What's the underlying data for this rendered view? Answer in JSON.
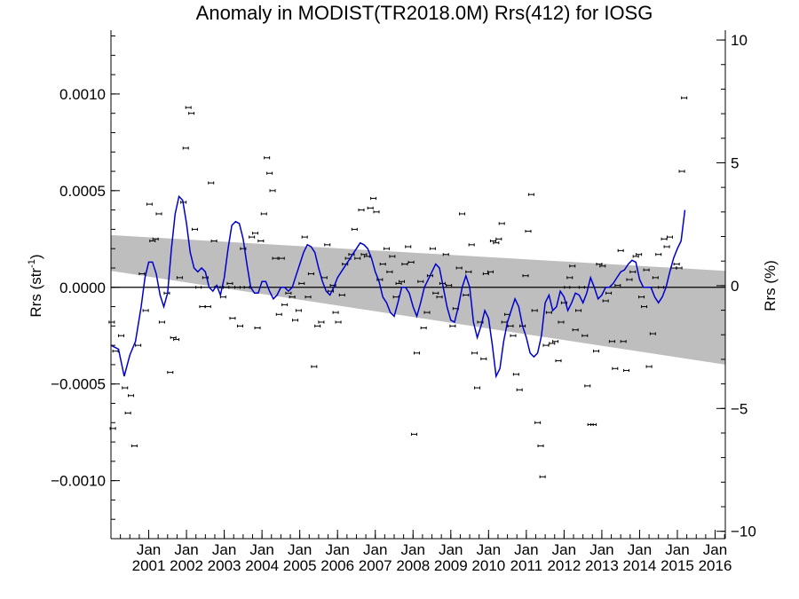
{
  "chart_data": {
    "type": "scatter",
    "title": "Anomaly in MODIST(TR2018.0M) Rrs(412) for IOSG",
    "ylabel_left": "Rrs (str",
    "ylabel_left_sup": "-1",
    "ylabel_left_tail": ")",
    "ylabel_right": "Rrs (%)",
    "ylim_left": [
      -0.0013,
      0.00133
    ],
    "ylim_right": [
      -10.3,
      10.4
    ],
    "xlim": [
      2000.0,
      2016.27
    ],
    "grid": false,
    "zero_line": true,
    "x_tick_labels": [
      {
        "month": "Jan",
        "year": "2001",
        "x": 2001.0
      },
      {
        "month": "Jan",
        "year": "2002",
        "x": 2002.0
      },
      {
        "month": "Jan",
        "year": "2003",
        "x": 2003.0
      },
      {
        "month": "Jan",
        "year": "2004",
        "x": 2004.0
      },
      {
        "month": "Jan",
        "year": "2005",
        "x": 2005.0
      },
      {
        "month": "Jan",
        "year": "2006",
        "x": 2006.0
      },
      {
        "month": "Jan",
        "year": "2007",
        "x": 2007.0
      },
      {
        "month": "Jan",
        "year": "2008",
        "x": 2008.0
      },
      {
        "month": "Jan",
        "year": "2009",
        "x": 2009.0
      },
      {
        "month": "Jan",
        "year": "2010",
        "x": 2010.0
      },
      {
        "month": "Jan",
        "year": "2011",
        "x": 2011.0
      },
      {
        "month": "Jan",
        "year": "2012",
        "x": 2012.0
      },
      {
        "month": "Jan",
        "year": "2013",
        "x": 2013.0
      },
      {
        "month": "Jan",
        "year": "2014",
        "x": 2014.0
      },
      {
        "month": "Jan",
        "year": "2015",
        "x": 2015.0
      },
      {
        "month": "Jan",
        "year": "2016",
        "x": 2016.0
      }
    ],
    "y_ticks_left": [
      {
        "value": 0.001,
        "label": "0.0010"
      },
      {
        "value": 0.0005,
        "label": "0.0005"
      },
      {
        "value": 0.0,
        "label": "0.0000"
      },
      {
        "value": -0.0005,
        "label": "−0.0005"
      },
      {
        "value": -0.001,
        "label": "−0.0010"
      }
    ],
    "y_ticks_right": [
      {
        "value": 10,
        "label": "10"
      },
      {
        "value": 5,
        "label": "5"
      },
      {
        "value": 0,
        "label": "0"
      },
      {
        "value": -5,
        "label": "−5"
      },
      {
        "value": -10,
        "label": "−10"
      }
    ],
    "colors": {
      "smooth_line": "#0000cc",
      "band": "#bebebe",
      "points": "#000000"
    },
    "confidence_band": {
      "x": [
        2000.0,
        2016.27
      ],
      "upper": [
        0.00027,
        8.5e-05
      ],
      "lower": [
        8.5e-05,
        -0.0004
      ]
    },
    "points": [
      [
        2000.02,
        -0.00018
      ],
      [
        2000.05,
        -0.00073
      ],
      [
        2000.12,
        -0.00033
      ],
      [
        2000.27,
        -0.00025
      ],
      [
        2000.37,
        -0.00052
      ],
      [
        2000.45,
        -0.00065
      ],
      [
        2000.53,
        -0.00056
      ],
      [
        2000.62,
        -0.00082
      ],
      [
        2000.72,
        -0.0003
      ],
      [
        2000.82,
        7e-05
      ],
      [
        2000.92,
        -0.00012
      ],
      [
        2001.02,
        0.00043
      ],
      [
        2001.1,
        0.00024
      ],
      [
        2001.18,
        0.00025
      ],
      [
        2001.27,
        0.00038
      ],
      [
        2001.35,
        -0.00018
      ],
      [
        2001.48,
        -3e-05
      ],
      [
        2001.57,
        -0.00044
      ],
      [
        2001.65,
        -0.00026
      ],
      [
        2001.73,
        -0.00027
      ],
      [
        2001.82,
        5e-05
      ],
      [
        2001.92,
        0.00044
      ],
      [
        2001.98,
        0.00072
      ],
      [
        2002.05,
        0.00093
      ],
      [
        2002.13,
        0.0009
      ],
      [
        2002.22,
        0.0003
      ],
      [
        2002.32,
        0.0
      ],
      [
        2002.42,
        -0.0001
      ],
      [
        2002.5,
        5e-05
      ],
      [
        2002.57,
        -0.0001
      ],
      [
        2002.65,
        0.00054
      ],
      [
        2002.73,
        0.00024
      ],
      [
        2002.82,
        0.0
      ],
      [
        2002.9,
        0.0
      ],
      [
        2002.97,
        -5e-05
      ],
      [
        2003.05,
        0.0
      ],
      [
        2003.15,
        2e-05
      ],
      [
        2003.22,
        -0.00016
      ],
      [
        2003.35,
        0.0
      ],
      [
        2003.42,
        -0.0002
      ],
      [
        2003.5,
        0.0002
      ],
      [
        2003.6,
        0.0
      ],
      [
        2003.73,
        0.00026
      ],
      [
        2003.82,
        0.00028
      ],
      [
        2003.88,
        -0.00021
      ],
      [
        2003.97,
        0.00024
      ],
      [
        2004.05,
        0.00038
      ],
      [
        2004.13,
        0.00067
      ],
      [
        2004.2,
        0.00059
      ],
      [
        2004.28,
        0.0005
      ],
      [
        2004.35,
        0.00015
      ],
      [
        2004.45,
        -0.00014
      ],
      [
        2004.52,
        0.00015
      ],
      [
        2004.6,
        -9e-05
      ],
      [
        2004.7,
        -3e-05
      ],
      [
        2004.8,
        -5e-05
      ],
      [
        2004.88,
        -0.00017
      ],
      [
        2004.97,
        -0.00012
      ],
      [
        2005.05,
        2e-05
      ],
      [
        2005.13,
        0.00026
      ],
      [
        2005.22,
        -5e-05
      ],
      [
        2005.3,
        7e-05
      ],
      [
        2005.38,
        -0.00041
      ],
      [
        2005.47,
        -0.0002
      ],
      [
        2005.57,
        -0.00018
      ],
      [
        2005.65,
        5e-05
      ],
      [
        2005.73,
        0.00022
      ],
      [
        2005.82,
        -2e-05
      ],
      [
        2005.88,
        1e-05
      ],
      [
        2005.95,
        -0.00013
      ],
      [
        2006.02,
        -0.00018
      ],
      [
        2006.12,
        -4e-05
      ],
      [
        2006.2,
        0.00012
      ],
      [
        2006.28,
        0.00015
      ],
      [
        2006.37,
        0.00017
      ],
      [
        2006.45,
        0.0003
      ],
      [
        2006.53,
        0.00015
      ],
      [
        2006.63,
        0.0004
      ],
      [
        2006.7,
        0.00017
      ],
      [
        2006.78,
        0.00016
      ],
      [
        2006.87,
        0.00041
      ],
      [
        2006.95,
        0.00046
      ],
      [
        2007.03,
        0.00039
      ],
      [
        2007.12,
        4e-05
      ],
      [
        2007.2,
        0.00012
      ],
      [
        2007.3,
        0.0002
      ],
      [
        2007.38,
        8e-05
      ],
      [
        2007.45,
        0.00016
      ],
      [
        2007.55,
        -5e-05
      ],
      [
        2007.62,
        2e-05
      ],
      [
        2007.7,
        3e-05
      ],
      [
        2007.78,
        0.00012
      ],
      [
        2007.87,
        0.00021
      ],
      [
        2007.95,
        0.00013
      ],
      [
        2008.03,
        -0.00076
      ],
      [
        2008.1,
        -0.00034
      ],
      [
        2008.2,
        3e-05
      ],
      [
        2008.28,
        -0.00021
      ],
      [
        2008.37,
        -0.00013
      ],
      [
        2008.45,
        6e-05
      ],
      [
        2008.52,
        0.0002
      ],
      [
        2008.6,
        -3e-05
      ],
      [
        2008.7,
        -5e-05
      ],
      [
        2008.78,
        2e-05
      ],
      [
        2008.87,
        0.00017
      ],
      [
        2008.95,
        1e-05
      ],
      [
        2009.05,
        -0.0002
      ],
      [
        2009.13,
        -0.00011
      ],
      [
        2009.22,
        0.0001
      ],
      [
        2009.3,
        0.00038
      ],
      [
        2009.4,
        -4e-05
      ],
      [
        2009.47,
        8e-05
      ],
      [
        2009.55,
        0.00022
      ],
      [
        2009.63,
        -0.00034
      ],
      [
        2009.7,
        -0.00052
      ],
      [
        2009.78,
        -0.00018
      ],
      [
        2009.87,
        -0.00037
      ],
      [
        2009.93,
        7e-05
      ],
      [
        2010.05,
        8e-05
      ],
      [
        2010.12,
        0.00024
      ],
      [
        2010.2,
        0.00023
      ],
      [
        2010.27,
        0.00025
      ],
      [
        2010.35,
        0.00033
      ],
      [
        2010.42,
        -0.00018
      ],
      [
        2010.5,
        -0.00014
      ],
      [
        2010.58,
        -0.0002
      ],
      [
        2010.65,
        -0.00025
      ],
      [
        2010.73,
        -0.00045
      ],
      [
        2010.82,
        -0.00053
      ],
      [
        2010.9,
        -0.0002
      ],
      [
        2010.98,
        6e-05
      ],
      [
        2011.05,
        0.00029
      ],
      [
        2011.13,
        0.00048
      ],
      [
        2011.22,
        -0.00012
      ],
      [
        2011.3,
        -0.0007
      ],
      [
        2011.38,
        -0.00082
      ],
      [
        2011.43,
        -0.00098
      ],
      [
        2011.52,
        -0.0003
      ],
      [
        2011.6,
        -0.00013
      ],
      [
        2011.68,
        -0.00029
      ],
      [
        2011.77,
        -0.00028
      ],
      [
        2011.85,
        -0.00038
      ],
      [
        2011.92,
        -0.00018
      ],
      [
        2012.0,
        -8e-05
      ],
      [
        2012.08,
        0.0
      ],
      [
        2012.15,
        5e-05
      ],
      [
        2012.22,
        0.00011
      ],
      [
        2012.3,
        -0.00022
      ],
      [
        2012.38,
        -0.00012
      ],
      [
        2012.47,
        0.0
      ],
      [
        2012.55,
        -0.00025
      ],
      [
        2012.62,
        -0.00051
      ],
      [
        2012.7,
        -0.00071
      ],
      [
        2012.78,
        -0.00071
      ],
      [
        2012.85,
        -0.00033
      ],
      [
        2012.93,
        0.00012
      ],
      [
        2013.02,
        0.00011
      ],
      [
        2013.1,
        -7e-05
      ],
      [
        2013.18,
        -3e-05
      ],
      [
        2013.27,
        -0.00028
      ],
      [
        2013.35,
        -0.00042
      ],
      [
        2013.42,
        1e-05
      ],
      [
        2013.5,
        0.00019
      ],
      [
        2013.57,
        -0.00028
      ],
      [
        2013.65,
        -0.00043
      ],
      [
        2013.73,
        4e-05
      ],
      [
        2013.82,
        8e-05
      ],
      [
        2013.9,
        0.00016
      ],
      [
        2013.98,
        0.00017
      ],
      [
        2014.05,
        -5e-05
      ],
      [
        2014.12,
        -0.0001
      ],
      [
        2014.18,
        9e-05
      ],
      [
        2014.25,
        -0.00041
      ],
      [
        2014.35,
        -0.00024
      ],
      [
        2014.42,
        5e-05
      ],
      [
        2014.5,
        0.00017
      ],
      [
        2014.57,
        0.0
      ],
      [
        2014.65,
        0.00025
      ],
      [
        2014.72,
        0.00021
      ],
      [
        2014.8,
        0.00026
      ],
      [
        2014.9,
        0.0001
      ],
      [
        2014.98,
        0.00012
      ],
      [
        2015.05,
        0.0001
      ],
      [
        2015.12,
        0.0006
      ],
      [
        2015.18,
        0.00098
      ]
    ],
    "smooth_line": [
      [
        2000.0,
        -0.0003
      ],
      [
        2000.2,
        -0.00032
      ],
      [
        2000.35,
        -0.00046
      ],
      [
        2000.5,
        -0.00035
      ],
      [
        2000.65,
        -0.00028
      ],
      [
        2000.8,
        -0.0001
      ],
      [
        2000.9,
        5e-05
      ],
      [
        2001.0,
        0.00013
      ],
      [
        2001.1,
        0.00013
      ],
      [
        2001.2,
        7e-05
      ],
      [
        2001.3,
        -4e-05
      ],
      [
        2001.4,
        -0.0001
      ],
      [
        2001.5,
        -3e-05
      ],
      [
        2001.6,
        0.0002
      ],
      [
        2001.7,
        0.00038
      ],
      [
        2001.8,
        0.00047
      ],
      [
        2001.9,
        0.00045
      ],
      [
        2002.0,
        0.00033
      ],
      [
        2002.1,
        0.00018
      ],
      [
        2002.2,
        0.0001
      ],
      [
        2002.3,
        8e-05
      ],
      [
        2002.4,
        0.0001
      ],
      [
        2002.5,
        8e-05
      ],
      [
        2002.6,
        0.0
      ],
      [
        2002.7,
        -2e-05
      ],
      [
        2002.8,
        1e-05
      ],
      [
        2002.9,
        -4e-05
      ],
      [
        2003.0,
        5e-05
      ],
      [
        2003.1,
        0.0002
      ],
      [
        2003.2,
        0.00032
      ],
      [
        2003.3,
        0.00034
      ],
      [
        2003.4,
        0.00033
      ],
      [
        2003.5,
        0.00025
      ],
      [
        2003.6,
        0.00012
      ],
      [
        2003.7,
        0.0
      ],
      [
        2003.8,
        -3e-05
      ],
      [
        2003.9,
        -3e-05
      ],
      [
        2004.0,
        3e-05
      ],
      [
        2004.1,
        3e-05
      ],
      [
        2004.2,
        -2e-05
      ],
      [
        2004.3,
        -6e-05
      ],
      [
        2004.4,
        -4e-05
      ],
      [
        2004.5,
        0.0
      ],
      [
        2004.6,
        0.0
      ],
      [
        2004.7,
        -2e-05
      ],
      [
        2004.8,
        0.0
      ],
      [
        2004.9,
        6e-05
      ],
      [
        2005.0,
        0.00012
      ],
      [
        2005.1,
        0.00018
      ],
      [
        2005.2,
        0.00022
      ],
      [
        2005.3,
        0.00021
      ],
      [
        2005.4,
        0.00018
      ],
      [
        2005.5,
        0.0001
      ],
      [
        2005.6,
        3e-05
      ],
      [
        2005.7,
        -2e-05
      ],
      [
        2005.8,
        -4e-05
      ],
      [
        2005.9,
        0.0
      ],
      [
        2006.0,
        5e-05
      ],
      [
        2006.1,
        8e-05
      ],
      [
        2006.2,
        0.00011
      ],
      [
        2006.3,
        0.00014
      ],
      [
        2006.4,
        0.00017
      ],
      [
        2006.5,
        0.0002
      ],
      [
        2006.6,
        0.00023
      ],
      [
        2006.7,
        0.00022
      ],
      [
        2006.8,
        0.0002
      ],
      [
        2006.9,
        0.00015
      ],
      [
        2007.0,
        8e-05
      ],
      [
        2007.1,
        3e-05
      ],
      [
        2007.2,
        -5e-05
      ],
      [
        2007.3,
        -8e-05
      ],
      [
        2007.4,
        -0.00013
      ],
      [
        2007.5,
        -0.00015
      ],
      [
        2007.6,
        -8e-05
      ],
      [
        2007.7,
        0.0
      ],
      [
        2007.8,
        0.0
      ],
      [
        2007.9,
        -3e-05
      ],
      [
        2008.0,
        -0.0001
      ],
      [
        2008.1,
        -0.00015
      ],
      [
        2008.2,
        -8e-05
      ],
      [
        2008.3,
        0.0
      ],
      [
        2008.4,
        4e-05
      ],
      [
        2008.5,
        8e-05
      ],
      [
        2008.6,
        0.00012
      ],
      [
        2008.7,
        0.0001
      ],
      [
        2008.8,
        0.0
      ],
      [
        2008.9,
        -0.0001
      ],
      [
        2009.0,
        -0.00017
      ],
      [
        2009.1,
        -0.00018
      ],
      [
        2009.2,
        -0.0001
      ],
      [
        2009.3,
        0.0
      ],
      [
        2009.4,
        6e-05
      ],
      [
        2009.5,
        0.0
      ],
      [
        2009.6,
        -0.00018
      ],
      [
        2009.7,
        -0.00026
      ],
      [
        2009.8,
        -0.0002
      ],
      [
        2009.9,
        -0.00012
      ],
      [
        2010.0,
        -0.00016
      ],
      [
        2010.1,
        -0.0003
      ],
      [
        2010.2,
        -0.00046
      ],
      [
        2010.3,
        -0.00042
      ],
      [
        2010.4,
        -0.00028
      ],
      [
        2010.5,
        -0.00018
      ],
      [
        2010.6,
        -0.00012
      ],
      [
        2010.7,
        -6e-05
      ],
      [
        2010.8,
        -0.0001
      ],
      [
        2010.9,
        -0.0002
      ],
      [
        2011.0,
        -0.00026
      ],
      [
        2011.1,
        -0.00034
      ],
      [
        2011.2,
        -0.00036
      ],
      [
        2011.3,
        -0.00034
      ],
      [
        2011.4,
        -0.00025
      ],
      [
        2011.5,
        -8e-05
      ],
      [
        2011.6,
        -4e-05
      ],
      [
        2011.7,
        -0.00012
      ],
      [
        2011.8,
        -0.0001
      ],
      [
        2011.9,
        -2e-05
      ],
      [
        2012.0,
        -5e-05
      ],
      [
        2012.1,
        -0.00012
      ],
      [
        2012.2,
        -8e-05
      ],
      [
        2012.3,
        -3e-05
      ],
      [
        2012.4,
        -4e-05
      ],
      [
        2012.5,
        -8e-05
      ],
      [
        2012.6,
        -3e-05
      ],
      [
        2012.7,
        5e-05
      ],
      [
        2012.8,
        0.0
      ],
      [
        2012.9,
        -6e-05
      ],
      [
        2013.0,
        -4e-05
      ],
      [
        2013.1,
        0.0
      ],
      [
        2013.2,
        0.0
      ],
      [
        2013.3,
        2e-05
      ],
      [
        2013.4,
        5e-05
      ],
      [
        2013.5,
        8e-05
      ],
      [
        2013.6,
        9e-05
      ],
      [
        2013.7,
        0.00012
      ],
      [
        2013.8,
        0.00014
      ],
      [
        2013.9,
        0.00013
      ],
      [
        2014.0,
        4e-05
      ],
      [
        2014.1,
        0.0
      ],
      [
        2014.2,
        0.0
      ],
      [
        2014.3,
        0.0
      ],
      [
        2014.4,
        -5e-05
      ],
      [
        2014.5,
        -8e-05
      ],
      [
        2014.6,
        -5e-05
      ],
      [
        2014.7,
        0.0
      ],
      [
        2014.8,
        8e-05
      ],
      [
        2014.9,
        0.00015
      ],
      [
        2015.0,
        0.0002
      ],
      [
        2015.1,
        0.00024
      ],
      [
        2015.2,
        0.0004
      ]
    ]
  }
}
